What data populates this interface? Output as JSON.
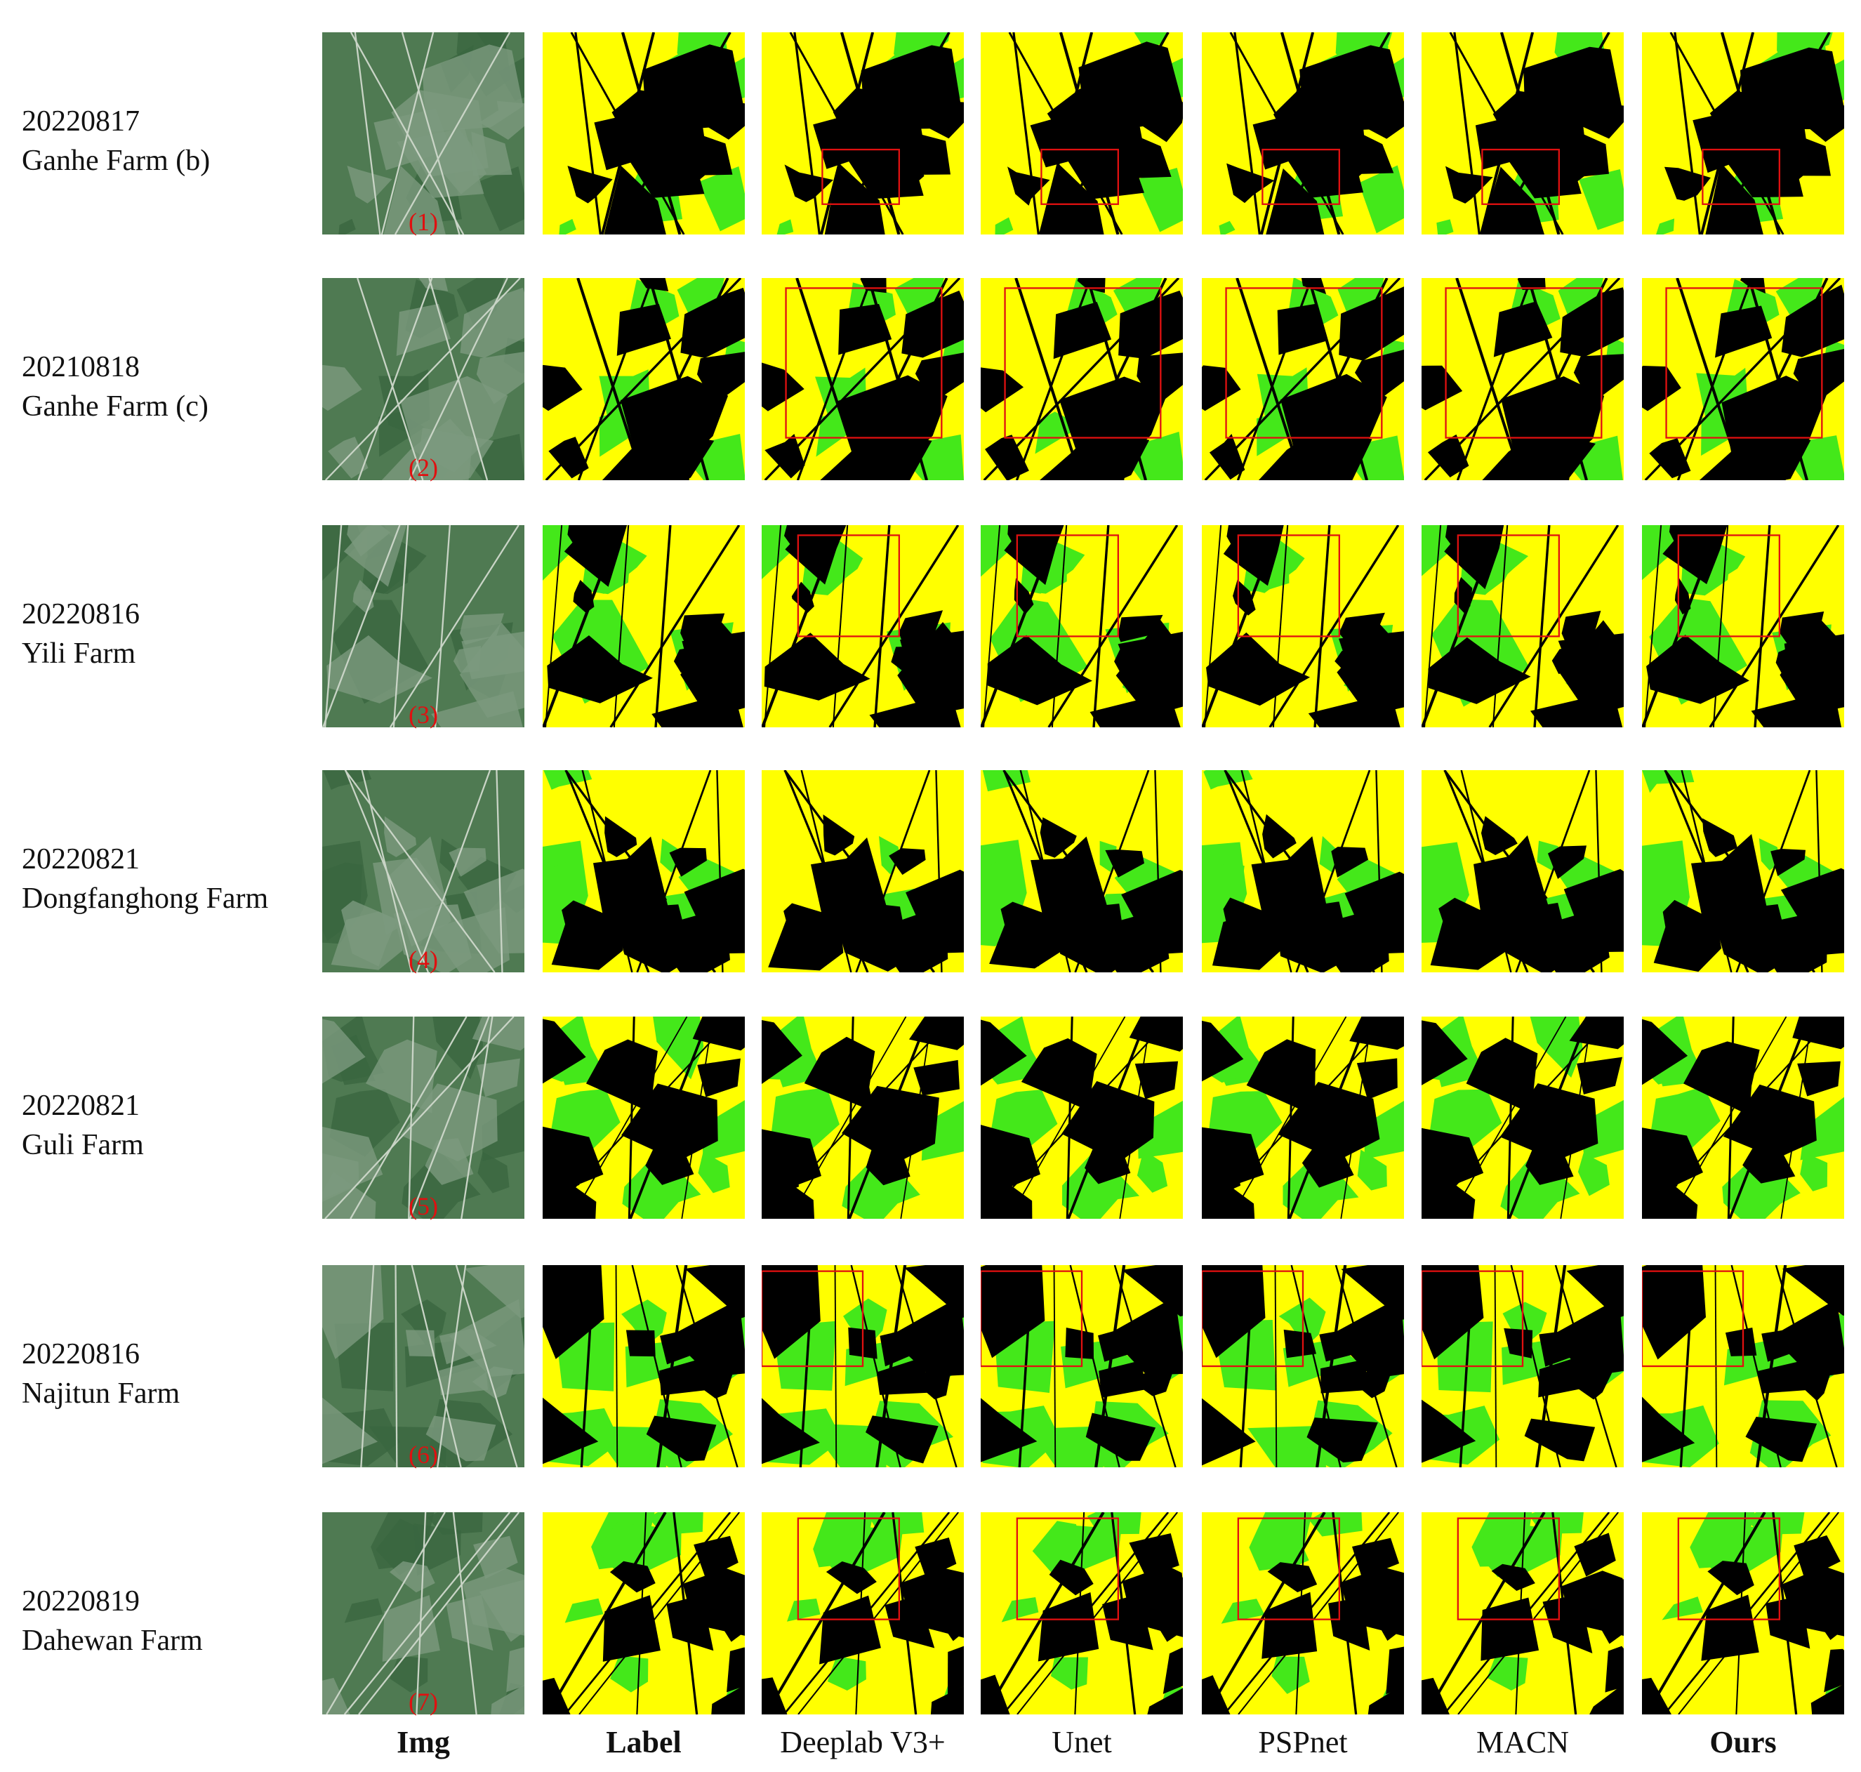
{
  "rows": [
    {
      "date": "20220817",
      "farm": "Ganhe Farm (b)",
      "index": "(1)"
    },
    {
      "date": "20210818",
      "farm": "Ganhe Farm (c)",
      "index": "(2)"
    },
    {
      "date": "20220816",
      "farm": "Yili Farm",
      "index": "(3)"
    },
    {
      "date": "20220821",
      "farm": "Dongfanghong Farm",
      "index": "(4)"
    },
    {
      "date": "20220821",
      "farm": "Guli Farm",
      "index": "(5)"
    },
    {
      "date": "20220816",
      "farm": "Najitun Farm",
      "index": "(6)"
    },
    {
      "date": "20220819",
      "farm": "Dahewan Farm",
      "index": "(7)"
    }
  ],
  "columns": [
    "Img",
    "Label",
    "Deeplab V3+",
    "Unet",
    "PSPnet",
    "MACN",
    "Ours"
  ]
}
